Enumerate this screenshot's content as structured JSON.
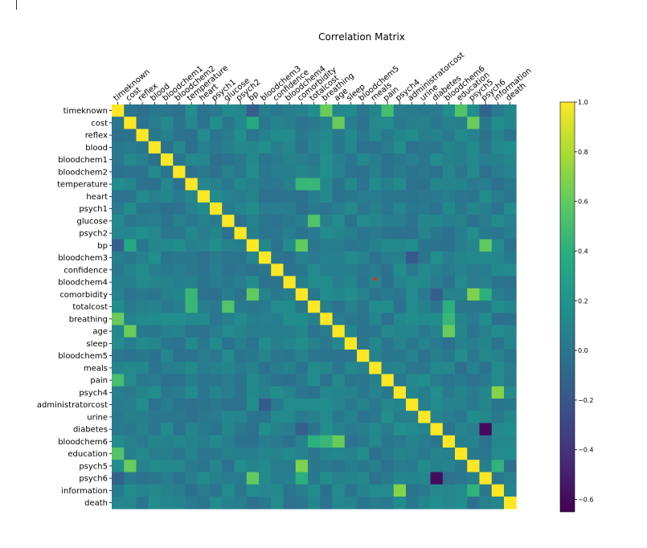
{
  "chart_data": {
    "type": "heatmap",
    "title": "Correlation Matrix",
    "labels": [
      "timeknown",
      "cost",
      "reflex",
      "blood",
      "bloodchem1",
      "bloodchem2",
      "temperature",
      "heart",
      "psych1",
      "glucose",
      "psych2",
      "bp",
      "bloodchem3",
      "confidence",
      "bloodchem4",
      "comorbidity",
      "totalcost",
      "breathing",
      "age",
      "sleep",
      "bloodchem5",
      "meals",
      "pain",
      "psych4",
      "administratorcost",
      "urine",
      "diabetes",
      "bloodchem6",
      "education",
      "psych5",
      "psych6",
      "information",
      "death"
    ],
    "colormap": "viridis",
    "colorbar": {
      "min": -0.65,
      "max": 1.0,
      "ticks": [
        "1.0",
        "0.8",
        "0.6",
        "0.4",
        "0.2",
        "0.0",
        "−0.2",
        "−0.4",
        "−0.6"
      ],
      "tick_values": [
        1.0,
        0.8,
        0.6,
        0.4,
        0.2,
        0.0,
        -0.2,
        -0.4,
        -0.6
      ]
    },
    "background_value": 0.06,
    "diagonal_value": 1.0,
    "notable_cells": [
      {
        "row": "timeknown",
        "col": "breathing",
        "value": 0.62
      },
      {
        "row": "breathing",
        "col": "timeknown",
        "value": 0.62
      },
      {
        "row": "timeknown",
        "col": "pain",
        "value": 0.5
      },
      {
        "row": "pain",
        "col": "timeknown",
        "value": 0.5
      },
      {
        "row": "timeknown",
        "col": "education",
        "value": 0.55
      },
      {
        "row": "education",
        "col": "timeknown",
        "value": 0.55
      },
      {
        "row": "cost",
        "col": "age",
        "value": 0.62
      },
      {
        "row": "age",
        "col": "cost",
        "value": 0.62
      },
      {
        "row": "cost",
        "col": "psych5",
        "value": 0.62
      },
      {
        "row": "psych5",
        "col": "cost",
        "value": 0.62
      },
      {
        "row": "cost",
        "col": "bp",
        "value": 0.35
      },
      {
        "row": "bp",
        "col": "cost",
        "value": 0.35
      },
      {
        "row": "temperature",
        "col": "comorbidity",
        "value": 0.45
      },
      {
        "row": "comorbidity",
        "col": "temperature",
        "value": 0.45
      },
      {
        "row": "bp",
        "col": "comorbidity",
        "value": 0.6
      },
      {
        "row": "comorbidity",
        "col": "bp",
        "value": 0.6
      },
      {
        "row": "bp",
        "col": "psych6",
        "value": 0.6
      },
      {
        "row": "psych6",
        "col": "bp",
        "value": 0.6
      },
      {
        "row": "totalcost",
        "col": "glucose",
        "value": 0.55
      },
      {
        "row": "glucose",
        "col": "totalcost",
        "value": 0.55
      },
      {
        "row": "totalcost",
        "col": "temperature",
        "value": 0.45
      },
      {
        "row": "temperature",
        "col": "totalcost",
        "value": 0.45
      },
      {
        "row": "totalcost",
        "col": "bloodchem6",
        "value": 0.4
      },
      {
        "row": "bloodchem6",
        "col": "totalcost",
        "value": 0.4
      },
      {
        "row": "age",
        "col": "bloodchem6",
        "value": 0.62
      },
      {
        "row": "bloodchem6",
        "col": "age",
        "value": 0.62
      },
      {
        "row": "breathing",
        "col": "bloodchem6",
        "value": 0.45
      },
      {
        "row": "bloodchem6",
        "col": "breathing",
        "value": 0.45
      },
      {
        "row": "psych4",
        "col": "information",
        "value": 0.7
      },
      {
        "row": "information",
        "col": "psych4",
        "value": 0.7
      },
      {
        "row": "psych5",
        "col": "comorbidity",
        "value": 0.68
      },
      {
        "row": "comorbidity",
        "col": "psych5",
        "value": 0.68
      },
      {
        "row": "psych6",
        "col": "comorbidity",
        "value": 0.4
      },
      {
        "row": "comorbidity",
        "col": "psych6",
        "value": 0.4
      },
      {
        "row": "diabetes",
        "col": "psych6",
        "value": -0.6
      },
      {
        "row": "psych6",
        "col": "diabetes",
        "value": -0.6
      },
      {
        "row": "information",
        "col": "psych5",
        "value": 0.42
      },
      {
        "row": "psych5",
        "col": "information",
        "value": 0.42
      },
      {
        "row": "timeknown",
        "col": "bp",
        "value": -0.15
      },
      {
        "row": "bp",
        "col": "timeknown",
        "value": -0.15
      },
      {
        "row": "timeknown",
        "col": "psych6",
        "value": -0.12
      },
      {
        "row": "psych6",
        "col": "timeknown",
        "value": -0.12
      },
      {
        "row": "diabetes",
        "col": "comorbidity",
        "value": -0.15
      },
      {
        "row": "comorbidity",
        "col": "diabetes",
        "value": -0.15
      },
      {
        "row": "bloodchem3",
        "col": "administratorcost",
        "value": -0.18
      },
      {
        "row": "administratorcost",
        "col": "bloodchem3",
        "value": -0.18
      }
    ],
    "grid": false,
    "legend": "colorbar-right",
    "annotation": {
      "kind": "red-dot",
      "row": "bloodchem4",
      "col": "meals"
    }
  }
}
